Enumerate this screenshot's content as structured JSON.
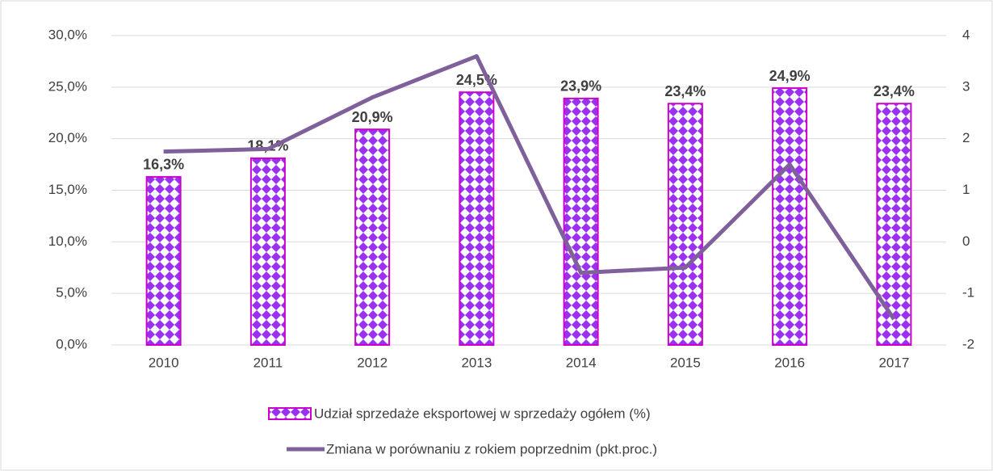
{
  "chart_data": {
    "type": "bar_line",
    "categories": [
      "2010",
      "2011",
      "2012",
      "2013",
      "2014",
      "2015",
      "2016",
      "2017"
    ],
    "series": [
      {
        "name": "Udział sprzedaże eksportowej w sprzedaży ogółem (%)",
        "type": "bar",
        "color": "#9b30f0",
        "edge_color": "#cc00cc",
        "values": [
          16.3,
          18.1,
          20.9,
          24.5,
          23.9,
          23.4,
          24.9,
          23.4
        ],
        "value_labels": [
          "16,3%",
          "18,1%",
          "20,9%",
          "24,5%",
          "23,9%",
          "23,4%",
          "24,9%",
          "23,4%"
        ]
      },
      {
        "name": "Zmiana w porównaniu z rokiem poprzednim (pkt.proc.)",
        "type": "line",
        "axis": "y2",
        "color": "#80609a",
        "values": [
          1.75,
          1.8,
          2.8,
          3.6,
          -0.6,
          -0.5,
          1.5,
          -1.5
        ]
      }
    ],
    "ylim": [
      0,
      30
    ],
    "yticks": [
      {
        "value": 0,
        "label": "0,0%"
      },
      {
        "value": 5,
        "label": "5,0%"
      },
      {
        "value": 10,
        "label": "10,0%"
      },
      {
        "value": 15,
        "label": "15,0%"
      },
      {
        "value": 20,
        "label": "20,0%"
      },
      {
        "value": 25,
        "label": "25,0%"
      },
      {
        "value": 30,
        "label": "30,0%"
      }
    ],
    "y2lim": [
      -2,
      4
    ],
    "y2ticks": [
      -2,
      -1,
      0,
      1,
      2,
      3,
      4
    ],
    "grid": true
  }
}
